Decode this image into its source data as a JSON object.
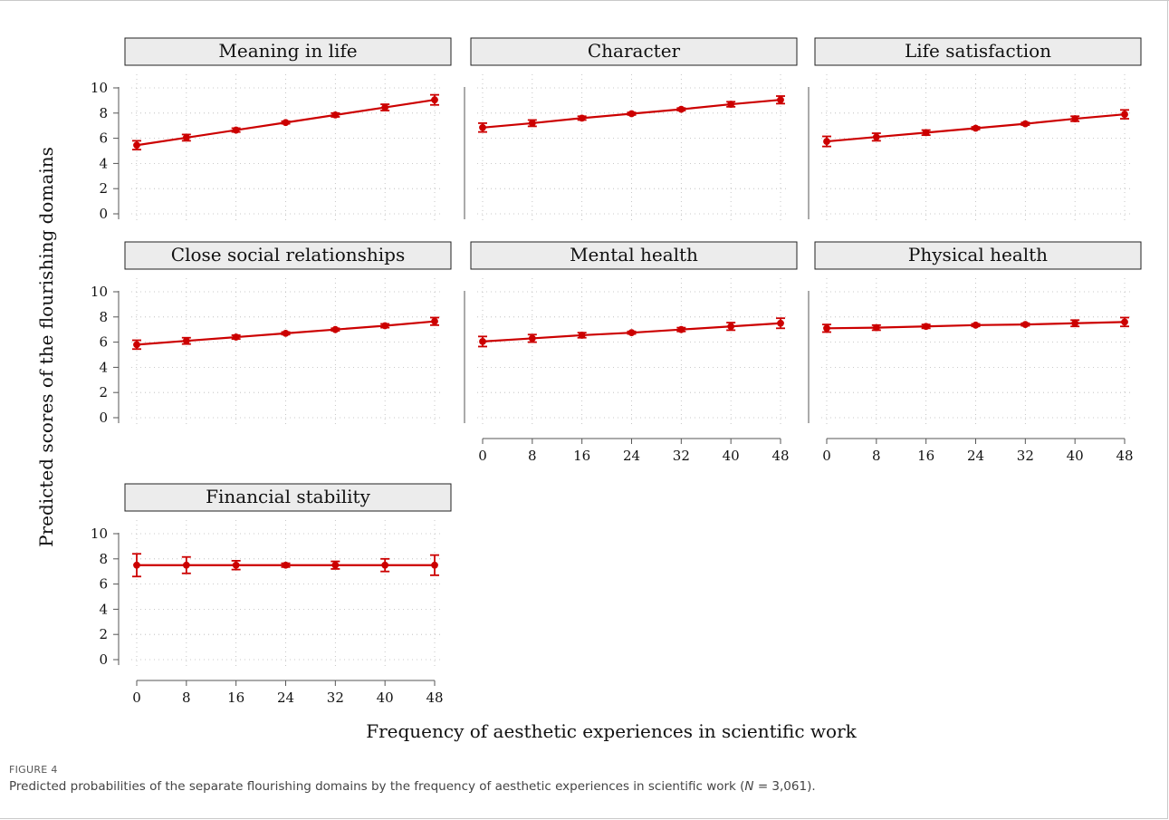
{
  "figure": {
    "label": "FIGURE 4",
    "caption_before_n": "Predicted probabilities of the separate flourishing domains by the frequency of aesthetic experiences in scientific work (",
    "caption_n": "N",
    "caption_after_n": " = 3,061)."
  },
  "colors": {
    "series": "#cc0000",
    "strip_fill": "#ececec",
    "grid": "#b8b8b8"
  },
  "chart_data": {
    "type": "line",
    "xlabel": "Frequency of aesthetic experiences in scientific work",
    "ylabel": "Predicted scores of the flourishing domains",
    "x": [
      0,
      8,
      16,
      24,
      32,
      40,
      48
    ],
    "x_ticks": [
      "0",
      "8",
      "16",
      "24",
      "32",
      "40",
      "48"
    ],
    "y_ticks": [
      "0",
      "2",
      "4",
      "6",
      "8",
      "10"
    ],
    "ylim": [
      0,
      10
    ],
    "grid": true,
    "panels": [
      {
        "title": "Meaning in life",
        "values": [
          5.45,
          6.05,
          6.65,
          7.25,
          7.85,
          8.45,
          9.05
        ],
        "lower": [
          5.1,
          5.8,
          6.5,
          7.15,
          7.7,
          8.2,
          8.65
        ],
        "upper": [
          5.8,
          6.3,
          6.8,
          7.35,
          8.0,
          8.7,
          9.45
        ]
      },
      {
        "title": "Character",
        "values": [
          6.85,
          7.2,
          7.6,
          7.95,
          8.3,
          8.7,
          9.05
        ],
        "lower": [
          6.5,
          6.95,
          7.45,
          7.85,
          8.2,
          8.5,
          8.75
        ],
        "upper": [
          7.2,
          7.45,
          7.75,
          8.05,
          8.4,
          8.9,
          9.35
        ]
      },
      {
        "title": "Life satisfaction",
        "values": [
          5.75,
          6.1,
          6.45,
          6.8,
          7.15,
          7.55,
          7.9
        ],
        "lower": [
          5.35,
          5.8,
          6.25,
          6.7,
          7.05,
          7.35,
          7.55
        ],
        "upper": [
          6.15,
          6.4,
          6.65,
          6.9,
          7.25,
          7.75,
          8.25
        ]
      },
      {
        "title": "Close social relationships",
        "values": [
          5.8,
          6.1,
          6.4,
          6.7,
          7.0,
          7.3,
          7.65
        ],
        "lower": [
          5.45,
          5.85,
          6.25,
          6.6,
          6.9,
          7.15,
          7.35
        ],
        "upper": [
          6.15,
          6.35,
          6.55,
          6.8,
          7.1,
          7.45,
          7.95
        ]
      },
      {
        "title": "Mental health",
        "values": [
          6.05,
          6.3,
          6.55,
          6.75,
          7.0,
          7.25,
          7.5
        ],
        "lower": [
          5.65,
          6.0,
          6.35,
          6.65,
          6.85,
          6.95,
          7.1
        ],
        "upper": [
          6.45,
          6.6,
          6.75,
          6.85,
          7.15,
          7.55,
          7.9
        ]
      },
      {
        "title": "Physical health",
        "values": [
          7.1,
          7.15,
          7.25,
          7.35,
          7.4,
          7.5,
          7.6
        ],
        "lower": [
          6.8,
          6.95,
          7.1,
          7.25,
          7.3,
          7.25,
          7.25
        ],
        "upper": [
          7.4,
          7.35,
          7.4,
          7.45,
          7.5,
          7.75,
          7.95
        ]
      },
      {
        "title": "Financial stability",
        "values": [
          7.5,
          7.5,
          7.5,
          7.5,
          7.5,
          7.5,
          7.5
        ],
        "lower": [
          6.6,
          6.85,
          7.15,
          7.35,
          7.2,
          7.0,
          6.7
        ],
        "upper": [
          8.4,
          8.15,
          7.85,
          7.65,
          7.8,
          8.0,
          8.3
        ]
      }
    ]
  }
}
